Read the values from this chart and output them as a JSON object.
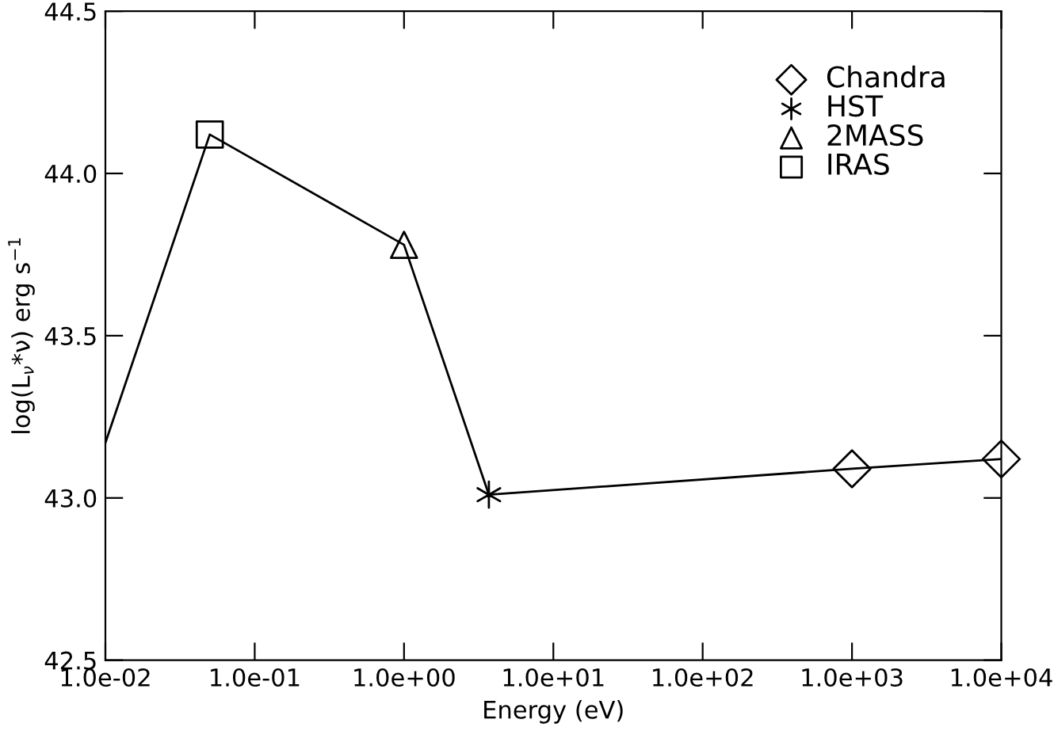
{
  "chart_data": {
    "type": "line",
    "xlabel": "Energy (eV)",
    "ylabel": "log(L$_{ν}$*ν) erg s$^{−1}$",
    "log": "x",
    "xlim": [
      0.01,
      10000
    ],
    "xticks": [
      {
        "value": 0.01,
        "label": "1.0e-02"
      },
      {
        "value": 0.1,
        "label": "1.0e-01"
      },
      {
        "value": 1,
        "label": "1.0e+00"
      },
      {
        "value": 10,
        "label": "1.0e+01"
      },
      {
        "value": 100,
        "label": "1.0e+02"
      },
      {
        "value": 1000,
        "label": "1.0e+03"
      },
      {
        "value": 10000,
        "label": "1.0e+04"
      }
    ],
    "ylim": [
      42.5,
      44.5
    ],
    "yticks": [
      {
        "value": 42.5,
        "label": "42.5"
      },
      {
        "value": 43.0,
        "label": "43.0"
      },
      {
        "value": 43.5,
        "label": "43.5"
      },
      {
        "value": 44.0,
        "label": "44.0"
      },
      {
        "value": 44.5,
        "label": "44.5"
      }
    ],
    "grid": false,
    "legend": "top right",
    "series": [
      {
        "color": "#000000",
        "marker": "none",
        "x": [
          0.01,
          0.05,
          1.0,
          3.7,
          1000,
          10000
        ],
        "values": [
          43.17,
          44.12,
          43.78,
          43.01,
          43.09,
          43.12
        ]
      },
      {
        "type": "scatter",
        "name": "Chandra",
        "color": "#000000",
        "marker": "diamond",
        "x": [
          1000,
          10000
        ],
        "values": [
          43.09,
          43.12
        ]
      },
      {
        "type": "scatter",
        "name": "HST",
        "color": "#000000",
        "marker": "cross",
        "x": [
          3.7
        ],
        "values": [
          43.01
        ]
      },
      {
        "type": "scatter",
        "name": "2MASS",
        "color": "#000000",
        "marker": "triangle",
        "x": [
          1.0
        ],
        "values": [
          43.78
        ]
      },
      {
        "type": "scatter",
        "name": "IRAS",
        "color": "#000000",
        "marker": "square",
        "x": [
          0.05
        ],
        "values": [
          44.12
        ]
      }
    ]
  }
}
